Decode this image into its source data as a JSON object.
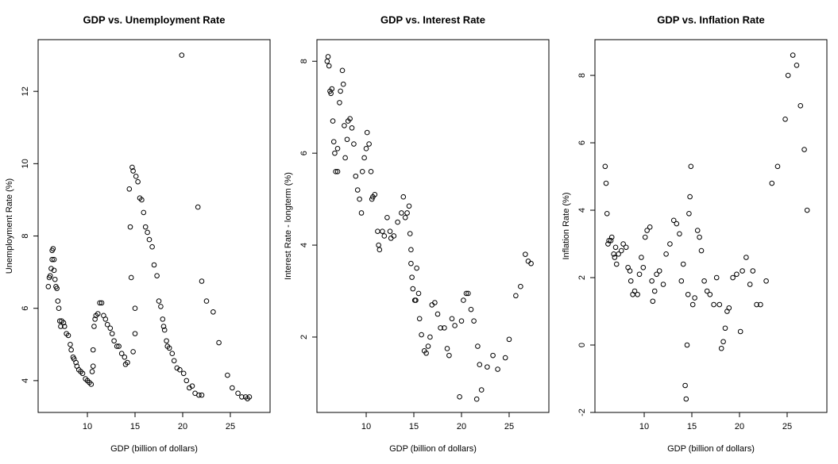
{
  "chart_data": [
    {
      "type": "scatter",
      "title": "GDP vs. Unemployment Rate",
      "xlabel": "GDP (billion of dollars)",
      "ylabel": "Unemployment Rate (%)",
      "color": "#000000",
      "xlim": [
        4.83,
        29.17
      ],
      "ylim": [
        3.12,
        13.43
      ],
      "xticks": [
        10,
        15,
        20,
        25
      ],
      "yticks": [
        4,
        6,
        8,
        10,
        12
      ],
      "x": [
        5.9,
        6.0,
        6.1,
        6.2,
        6.3,
        6.3,
        6.4,
        6.5,
        6.5,
        6.6,
        6.7,
        6.8,
        6.9,
        7.0,
        7.1,
        7.2,
        7.3,
        7.5,
        7.6,
        7.8,
        8.0,
        8.2,
        8.3,
        8.5,
        8.6,
        8.8,
        8.9,
        9.1,
        9.3,
        9.5,
        9.8,
        10.0,
        10.2,
        10.4,
        10.5,
        10.6,
        10.6,
        10.7,
        10.8,
        10.9,
        11.1,
        11.3,
        11.5,
        11.7,
        11.9,
        12.1,
        12.4,
        12.6,
        12.8,
        13.1,
        13.3,
        13.6,
        13.9,
        14.0,
        14.2,
        14.4,
        14.5,
        14.6,
        14.7,
        14.8,
        14.8,
        15.0,
        15.0,
        15.1,
        15.3,
        15.5,
        15.7,
        15.9,
        16.1,
        16.3,
        16.5,
        16.8,
        17.0,
        17.3,
        17.5,
        17.7,
        17.9,
        18.0,
        18.1,
        18.3,
        18.4,
        18.6,
        18.9,
        19.1,
        19.4,
        19.7,
        19.9,
        20.1,
        20.4,
        20.7,
        21.0,
        21.3,
        21.6,
        21.7,
        22.0,
        22.0,
        22.5,
        23.2,
        23.8,
        24.7,
        25.2,
        25.8,
        26.2,
        26.6,
        27.0,
        26.8
      ],
      "values": [
        6.6,
        6.85,
        6.9,
        7.1,
        7.35,
        7.6,
        7.65,
        7.35,
        7.05,
        6.8,
        6.6,
        6.55,
        6.2,
        6.0,
        5.65,
        5.5,
        5.65,
        5.6,
        5.5,
        5.3,
        5.25,
        5.0,
        4.85,
        4.65,
        4.6,
        4.5,
        4.4,
        4.3,
        4.25,
        4.2,
        4.05,
        4.0,
        3.95,
        3.9,
        4.25,
        4.4,
        4.85,
        5.5,
        5.7,
        5.8,
        5.85,
        6.15,
        6.15,
        5.8,
        5.7,
        5.55,
        5.45,
        5.3,
        5.1,
        4.95,
        4.95,
        4.75,
        4.65,
        4.45,
        4.5,
        9.3,
        8.25,
        6.85,
        9.9,
        9.8,
        4.8,
        6.0,
        5.3,
        9.65,
        9.5,
        9.05,
        9.0,
        8.65,
        8.25,
        8.1,
        7.9,
        7.7,
        7.2,
        6.9,
        6.2,
        6.05,
        5.7,
        5.5,
        5.4,
        5.1,
        4.95,
        4.9,
        4.75,
        4.55,
        4.35,
        4.3,
        13.0,
        4.2,
        4.0,
        3.8,
        3.85,
        3.65,
        8.8,
        3.6,
        3.6,
        6.75,
        6.2,
        5.9,
        5.05,
        4.15,
        3.8,
        3.65,
        3.55,
        3.55,
        3.55,
        3.5
      ]
    },
    {
      "type": "scatter",
      "title": "GDP vs. Interest Rate",
      "xlabel": "GDP (billion of dollars)",
      "ylabel": "Interest Rate - longterm (%)",
      "color": "#000000",
      "xlim": [
        4.83,
        29.17
      ],
      "ylim": [
        0.36,
        8.47
      ],
      "xticks": [
        10,
        15,
        20,
        25
      ],
      "yticks": [
        2,
        4,
        6,
        8
      ],
      "x": [
        5.9,
        6.0,
        6.1,
        6.2,
        6.3,
        6.4,
        6.5,
        6.6,
        6.7,
        6.8,
        7.0,
        7.0,
        7.2,
        7.3,
        7.5,
        7.6,
        7.7,
        7.8,
        8.0,
        8.1,
        8.3,
        8.5,
        8.7,
        8.9,
        9.1,
        9.3,
        9.5,
        9.6,
        9.8,
        10.0,
        10.1,
        10.3,
        10.5,
        10.6,
        10.7,
        10.9,
        11.2,
        11.3,
        11.4,
        11.7,
        11.9,
        12.2,
        12.5,
        12.6,
        12.9,
        13.3,
        13.7,
        13.9,
        14.1,
        14.3,
        14.5,
        14.6,
        14.7,
        14.7,
        14.8,
        14.9,
        15.1,
        15.2,
        15.3,
        15.5,
        15.6,
        15.8,
        16.1,
        16.3,
        16.5,
        16.7,
        16.9,
        17.2,
        17.5,
        17.8,
        18.2,
        18.5,
        18.7,
        19.0,
        19.3,
        19.8,
        20.0,
        20.2,
        20.5,
        20.7,
        21.0,
        21.3,
        21.6,
        21.7,
        21.9,
        22.1,
        22.7,
        23.3,
        23.8,
        24.6,
        25.0,
        25.7,
        26.2,
        26.7,
        27.0,
        27.3
      ],
      "values": [
        8.0,
        8.1,
        7.9,
        7.35,
        7.3,
        7.4,
        6.7,
        6.25,
        6.0,
        5.6,
        5.6,
        6.1,
        7.1,
        7.35,
        7.8,
        7.5,
        6.6,
        5.9,
        6.3,
        6.7,
        6.75,
        6.55,
        6.2,
        5.5,
        5.2,
        5.0,
        4.7,
        5.6,
        5.9,
        6.1,
        6.45,
        6.2,
        5.6,
        5.0,
        5.05,
        5.1,
        4.3,
        4.0,
        3.9,
        4.3,
        4.2,
        4.6,
        4.3,
        4.15,
        4.2,
        4.5,
        4.7,
        5.05,
        4.6,
        4.7,
        4.85,
        4.25,
        3.9,
        3.6,
        3.3,
        3.05,
        2.8,
        2.8,
        3.5,
        2.95,
        2.4,
        2.05,
        1.7,
        1.65,
        1.8,
        2.0,
        2.7,
        2.75,
        2.5,
        2.2,
        2.2,
        1.75,
        1.6,
        2.4,
        2.25,
        0.7,
        2.35,
        2.8,
        2.95,
        2.95,
        2.6,
        2.35,
        0.65,
        1.8,
        1.4,
        0.85,
        1.35,
        1.6,
        1.3,
        1.55,
        1.95,
        2.9,
        3.1,
        3.8,
        3.65,
        3.6
      ]
    },
    {
      "type": "scatter",
      "title": "GDP vs. Inflation Rate",
      "xlabel": "GDP (billion of dollars)",
      "ylabel": "Inflation Rate (%)",
      "color": "#000000",
      "xlim": [
        4.83,
        29.17
      ],
      "ylim": [
        -2,
        9.06
      ],
      "xticks": [
        10,
        15,
        20,
        25
      ],
      "yticks": [
        -2,
        0,
        2,
        4,
        6,
        8
      ],
      "x": [
        5.9,
        6.0,
        6.1,
        6.2,
        6.3,
        6.5,
        6.6,
        6.8,
        6.9,
        7.0,
        7.1,
        7.3,
        7.6,
        7.8,
        8.1,
        8.3,
        8.5,
        8.6,
        8.8,
        9.0,
        9.3,
        9.5,
        9.7,
        9.9,
        10.1,
        10.3,
        10.6,
        10.8,
        10.9,
        11.1,
        11.3,
        11.6,
        12.0,
        12.3,
        12.7,
        13.1,
        13.4,
        13.7,
        13.9,
        14.1,
        14.3,
        14.4,
        14.5,
        14.6,
        14.7,
        14.8,
        14.9,
        15.1,
        15.3,
        15.6,
        15.8,
        16.0,
        16.3,
        16.6,
        16.9,
        17.3,
        17.6,
        17.9,
        18.1,
        18.3,
        18.5,
        18.7,
        18.9,
        19.3,
        19.7,
        20.1,
        20.3,
        20.7,
        21.1,
        21.4,
        21.8,
        22.2,
        22.8,
        23.4,
        24.0,
        24.8,
        25.1,
        25.6,
        26.0,
        26.4,
        26.8,
        27.1
      ],
      "values": [
        5.3,
        4.8,
        3.9,
        3.0,
        3.1,
        3.1,
        3.2,
        2.7,
        2.6,
        2.9,
        2.4,
        2.7,
        2.8,
        3.0,
        2.9,
        2.3,
        2.2,
        1.9,
        1.5,
        1.6,
        1.5,
        2.1,
        2.6,
        2.3,
        3.2,
        3.4,
        3.5,
        1.9,
        1.3,
        1.6,
        2.1,
        2.2,
        1.8,
        2.7,
        3.0,
        3.7,
        3.6,
        3.3,
        1.9,
        2.4,
        -1.2,
        -1.6,
        0.0,
        1.5,
        3.9,
        4.4,
        5.3,
        1.2,
        1.4,
        3.4,
        3.2,
        2.8,
        1.9,
        1.6,
        1.5,
        1.2,
        2.0,
        1.2,
        -0.1,
        0.1,
        0.5,
        1.0,
        1.1,
        2.0,
        2.1,
        0.4,
        2.2,
        2.6,
        1.8,
        2.2,
        1.2,
        1.2,
        1.9,
        4.8,
        5.3,
        6.7,
        8.0,
        8.6,
        8.3,
        7.1,
        5.8,
        4.0
      ]
    }
  ]
}
